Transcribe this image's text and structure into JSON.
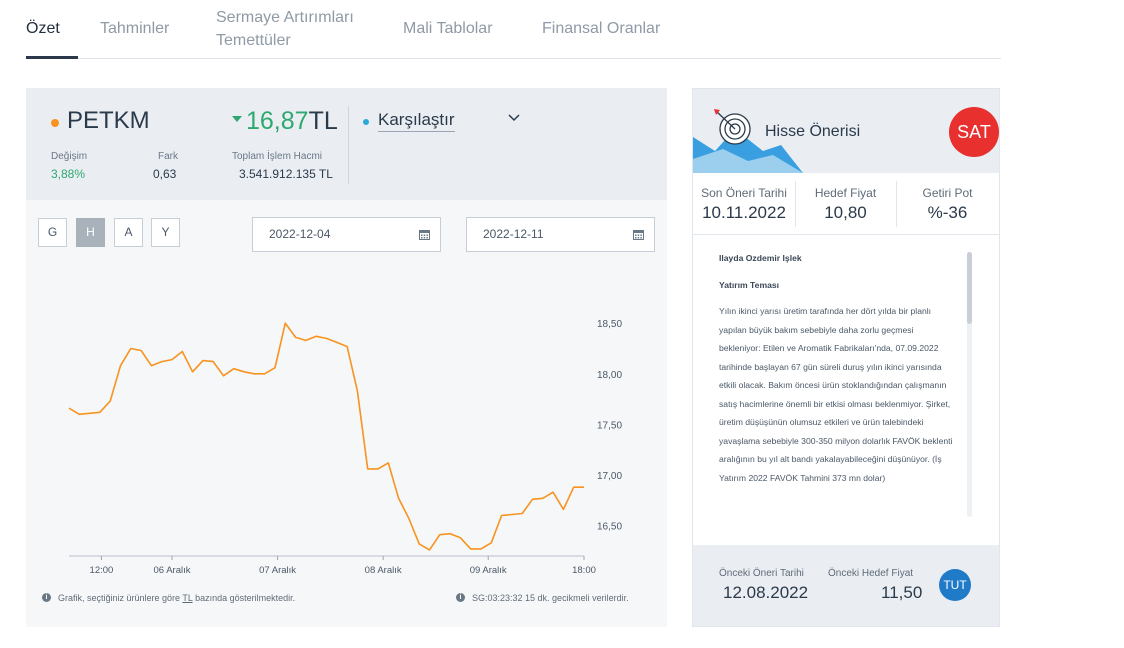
{
  "tabs": [
    {
      "label": "Özet"
    },
    {
      "label": "Tahminler"
    },
    {
      "label": "Sermaye Artırımları Temettüler"
    },
    {
      "label": "Mali Tablolar"
    },
    {
      "label": "Finansal Oranlar"
    }
  ],
  "stock": {
    "symbol": "PETKM",
    "price": "16,87",
    "currency": "TL",
    "compare_label": "Karşılaştır",
    "change_label": "Değişim",
    "change_value": "3,88%",
    "diff_label": "Fark",
    "diff_value": "0,63",
    "volume_label": "Toplam İşlem Hacmi",
    "volume_value": "3.541.912.135 TL"
  },
  "periods": [
    "G",
    "H",
    "A",
    "Y"
  ],
  "active_period": "H",
  "dates": {
    "start": "2022-12-04",
    "end": "2022-12-11"
  },
  "footer": {
    "info_prefix": "Grafik, seçtiğiniz ürünlere göre ",
    "info_unit": "TL",
    "info_suffix": " bazında gösterilmektedir.",
    "delay": "SG:03:23:32 15 dk. gecikmeli verilerdir."
  },
  "colors": {
    "line": "#f7931e",
    "up": "#2ea86e",
    "sell": "#e8302f",
    "hold": "#1f7ac8",
    "compare_dot": "#2aa8d8"
  },
  "chart_data": {
    "type": "line",
    "ylim": [
      16.2,
      18.65
    ],
    "yticks": [
      "18,50",
      "18,00",
      "17,50",
      "17,00",
      "16,50"
    ],
    "ytick_values": [
      18.5,
      18.0,
      17.5,
      17.0,
      16.5
    ],
    "xtick_labels": [
      "12:00",
      "06 Aralık",
      "07 Aralık",
      "08 Aralık",
      "09 Aralık",
      "18:00"
    ],
    "xtick_positions": [
      0.063,
      0.2,
      0.405,
      0.61,
      0.814,
      1.0
    ],
    "grid": false,
    "series": [
      {
        "values": [
          17.66,
          17.6,
          17.61,
          17.62,
          17.73,
          18.08,
          18.25,
          18.23,
          18.08,
          18.12,
          18.14,
          18.22,
          18.02,
          18.13,
          18.12,
          17.98,
          18.05,
          18.02,
          18.0,
          18.0,
          18.06,
          18.5,
          18.36,
          18.33,
          18.37,
          18.35,
          18.31,
          18.27,
          17.83,
          17.06,
          17.06,
          17.12,
          16.77,
          16.57,
          16.32,
          16.26,
          16.41,
          16.42,
          16.38,
          16.27,
          16.27,
          16.33,
          16.6,
          16.61,
          16.62,
          16.76,
          16.77,
          16.83,
          16.66,
          16.88,
          16.88
        ]
      }
    ]
  },
  "recommendation": {
    "title": "Hisse Önerisi",
    "badge": "SAT",
    "date_label": "Son Öneri Tarihi",
    "date_value": "10.11.2022",
    "target_label": "Hedef Fiyat",
    "target_value": "10,80",
    "potential_label": "Getiri Pot",
    "potential_value": "%-36",
    "author": "Ilayda Ozdemir Işlek",
    "theme_title": "Yatırım Teması",
    "body": "Yılın ikinci yarısı üretim tarafında her dört yılda bir planlı yapılan büyük bakım sebebiyle daha zorlu geçmesi bekleniyor: Etilen ve Aromatik Fabrikaları'nda, 07.09.2022 tarihinde başlayan 67 gün süreli duruş yılın ikinci yarısında etkili olacak. Bakım öncesi ürün stoklandığından çalışmanın satış hacimlerine önemli bir etkisi olması beklenmiyor. Şirket, üretim düşüşünün olumsuz etkileri ve ürün talebindeki yavaşlama sebebiyle 300-350 milyon dolarlık FAVÖK beklenti aralığının bu yıl alt bandı yakalayabileceğini düşünüyor. (İş Yatırım 2022 FAVÖK Tahmini 373 mn dolar)",
    "prev_date_label": "Önceki Öneri Tarihi",
    "prev_date_value": "12.08.2022",
    "prev_target_label": "Önceki Hedef Fiyat",
    "prev_target_value": "11,50",
    "prev_badge": "TUT"
  }
}
